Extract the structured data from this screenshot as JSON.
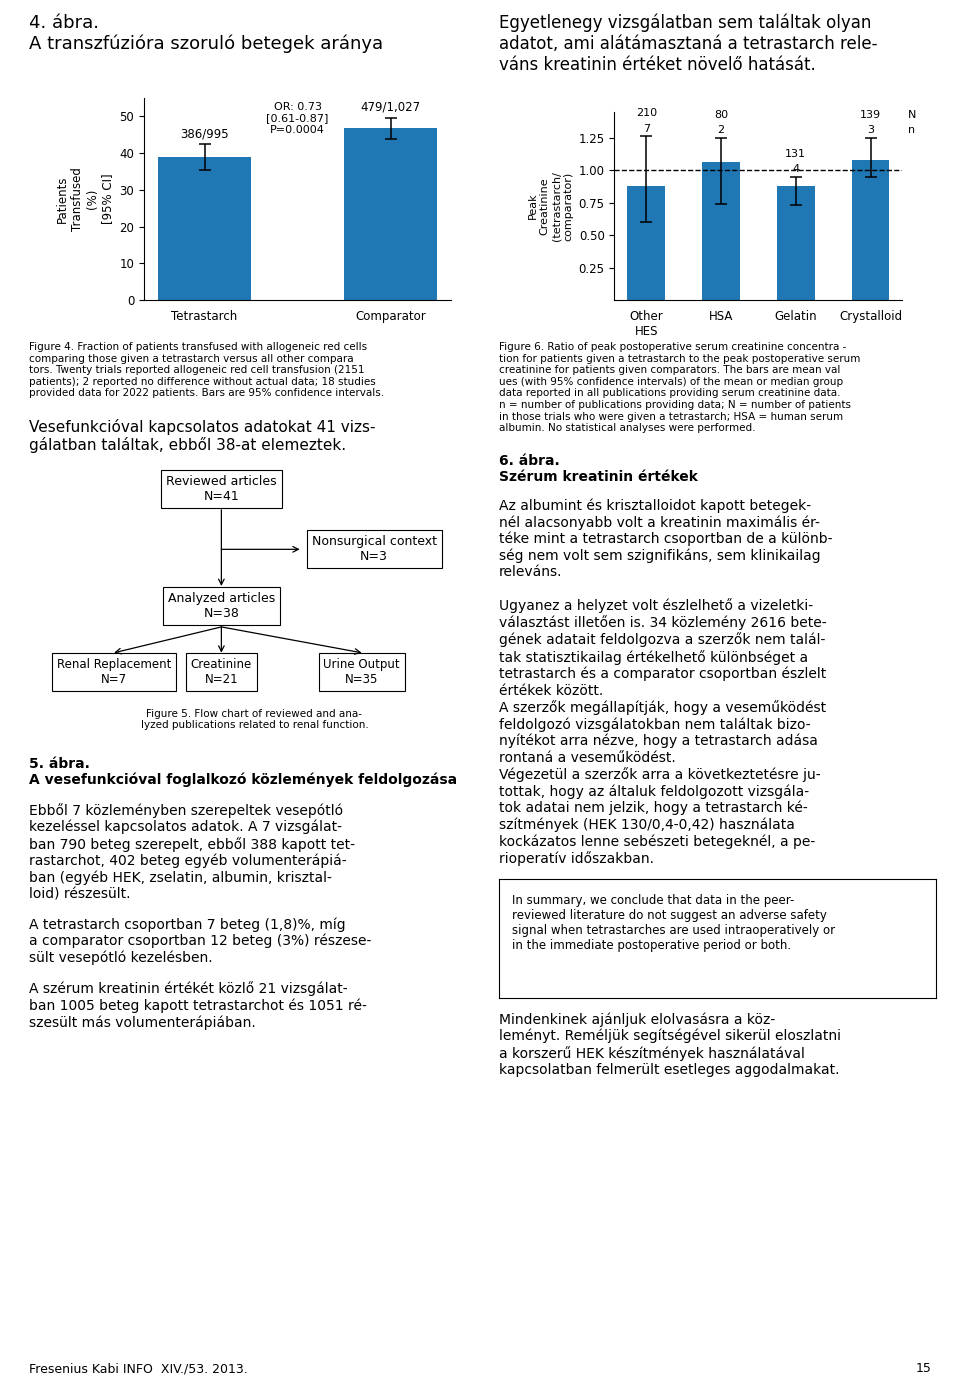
{
  "chart_data": [
    {
      "type": "bar",
      "title": "4. ábra.\nA transzfúzióra szoruló betegek aránya",
      "categories": [
        "Tetrastarch",
        "Comparator"
      ],
      "values": [
        38.8,
        46.7
      ],
      "error_low": [
        3.5,
        2.8
      ],
      "error_high": [
        3.5,
        2.8
      ],
      "ylabel": "Patients\nTransfused\n(%)\n[95% CI]",
      "ylim": [
        0,
        55
      ],
      "yticks": [
        0,
        10,
        20,
        30,
        40,
        50
      ],
      "annotations": [
        {
          "text": "386/995",
          "category": "Tetrastarch"
        },
        {
          "text": "479/1,027",
          "category": "Comparator"
        },
        {
          "text": "OR: 0.73\n[0.61-0.87]\nP=0.0004"
        }
      ],
      "caption": "Figure 4. Fraction of patients transfused with allogeneic red cells\ncomparing those given a tetrastarch versus all other compara\ntors. Twenty trials reported allogeneic red cell transfusion (2151\npatients); 2 reported no difference without actual data; 18 studies\nprovided data for 2022 patients. Bars are 95% confidence intervals."
    },
    {
      "type": "bar",
      "title": "Egyetlenegy vizsgálatban sem találtak olyan\nadatot, ami alátámasztaná a tetrastarch rele-\nváns kreatinin értéket növelő hatását.",
      "categories": [
        "Other\nHES",
        "HSA",
        "Gelatin",
        "Crystalloid"
      ],
      "values": [
        0.88,
        1.06,
        0.88,
        1.08
      ],
      "error_low": [
        0.28,
        0.32,
        0.15,
        0.13
      ],
      "error_high": [
        0.38,
        0.19,
        0.07,
        0.17
      ],
      "ylabel": "Peak\nCreatinine\n(tetrastarch/\ncomparator)",
      "ylim": [
        0,
        1.45
      ],
      "yticks": [
        0.25,
        {
          "value": 0.5,
          "label": "0.50"
        },
        0.75,
        {
          "value": 1.0,
          "label": "1.00"
        },
        1.25
      ],
      "reference_line": 1.0,
      "counts": [
        {
          "label": "n",
          "values": [
            7,
            2,
            4,
            3
          ]
        },
        {
          "label": "N",
          "values": [
            210,
            80,
            131,
            139
          ]
        }
      ],
      "caption": "Figure 6. Ratio of peak postoperative serum creatinine concentra -\ntion for patients given a tetrastarch to the peak postoperative serum\ncreatinine for patients given comparators. The bars are mean val\nues (with 95% confidence intervals) of the mean or median group\ndata reported in all publications providing serum creatinine data.\nn = number of publications providing data; N = number of patients\nin those trials who were given a tetrastarch; HSA = human serum\nalbumin. No statistical analyses were performed."
    },
    {
      "type": "flowchart",
      "title": "5. ábra.\nA vesefunkcióval foglalkozó közlemények feldolgozása",
      "nodes": [
        "Reviewed articles\nN=41",
        "Nonsurgical context\nN=3",
        "Analyzed articles\nN=38",
        "Renal Replacement\nN=7",
        "Creatinine\nN=21",
        "Urine Output\nN=35"
      ],
      "caption": "Figure 5. Flow chart of reviewed and ana-\nlyzed publications related to renal function."
    }
  ],
  "annotations": [
    "Vesefunkcióval kapcsolatos adatokat 41 vizs-\ngálatban találtak, ebből 38-at elemeztek.",
    "Ebből 7 közleményben szerepeltek vesepótló\nkezeléssel kapcsolatos adatok. A 7 vizsgálat-\nban 790 beteg szerepelt, ebből 388 kapott tet-\nrastarchot, 402 beteg egyéb volumenterápiá-\nban (egyéb HEK, zselatin, albumin, krisztal-\nloid) részesült.",
    "A tetrastarch csoportban 7 beteg (1,8)%, míg\na comparator csoportban 12 beteg (3%) részese-\nsült vesepótló kezelésben.",
    "A szérum kreatinin értékét közlő 21 vizsgálat-\nban 1005 beteg kapott tetrastarchot és 1051 ré-\nszesült más volumenterápiában.",
    "6. ábra.\nSzérum kreatinin értékek",
    "Az albumint és krisztalloidot kapott betegek-\nnél alacsonyabb volt a kreatinin maximális ér-\ntéke mint a tetrastarch csoportban de a különb-\nség nem volt sem szignifikáns, sem klinikailag\nreleváns.\n\nUgyanez a helyzet volt észlelhető a vizeletki-\nválasztást illetően is. 34 közlemény 2616 bete-\ngének adatait feldolgozva a szerzők nem talál-\ntak statisztikailag értékelhető különbséget a\ntetrastarch és a comparator csoportban észlelt\nértékek között.\nA szerzők megállapítják, hogy a veseműködést\nfeldolgozó vizsgálatokban nem találtak bizo-\nnyítékot arra nézve, hogy a tetrastarch adása\nrontaná a veseműködést.\nVégezetül a szerzők arra a következtetésre ju-\ntottak, hogy az általuk feldolgozott vizsgála-\ntok adatai nem jelzik, hogy a tetrastarch ké-\nszítmények (HEK 130/0,4-0,42) használata\nkockázatos lenne sebészeti betegeknél, a pe-\nrioperatív időszakban.",
    "In summary, we conclude that data in the peer-\nreviewed literature do not suggest an adverse safety\nsignal when tetrastarches are used intraoperatively or\nin the immediate postoperative period or both.",
    "Mindenkinek ajánljuk elolvasásra a köz-\nleményt. Reméljük segítségével sikerül eloszlatni\na korszerű HEK készítmények használatával\nkapcsolatban felmerült esetleges aggodalmakat.",
    "Fresenius Kabi INFO  XIV./53. 2013.",
    "15"
  ]
}
